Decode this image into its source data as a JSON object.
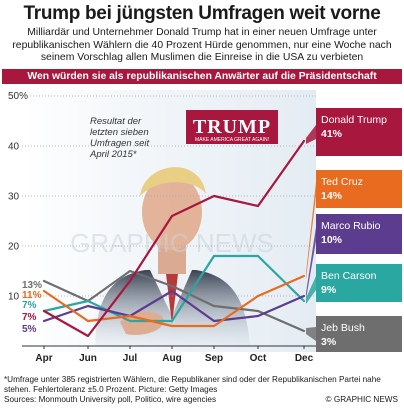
{
  "header": {
    "title": "Trump bei jüngsten Umfragen weit vorne",
    "subtitle": "Milliardär und Unternehmer Donald Trump hat in einer neuen Umfrage unter republikanischen Wählern die 40 Prozent Hürde genommen, nur eine Woche nach seinem Vorschlag allen Muslimen die Einreise in die USA zu verbieten",
    "question": "Wen würden sie als republikanischen Anwärter auf die Präsidentschaft nominieren?"
  },
  "annotation": "Resultat der letzten sieben Umfragen seit April 2015*",
  "photo": {
    "sign_text": "TRUMP",
    "sign_tagline": "MAKE AMERICA GREAT AGAIN!"
  },
  "watermark": "GRAPHIC NEWS",
  "footer": {
    "footnote": "*Umfrage unter 385 registrierten Wählern, die Republikaner sind oder der Republikanischen Partei nahe stehen. Fehlertoleranz ±5.0 Prozent. Picture: Getty Images",
    "sources": "Sources: Monmouth University poll, Politico, wire agencies",
    "copyright": "© GRAPHIC NEWS"
  },
  "chart_data": {
    "type": "line",
    "y_unit_label": "50%",
    "ylim": [
      0,
      50
    ],
    "y_ticks": [
      10,
      20,
      30,
      40
    ],
    "categories": [
      "Apr",
      "Jun",
      "Jul",
      "Aug",
      "Sep",
      "Oct",
      "Dec"
    ],
    "series": [
      {
        "name": "Donald Trump",
        "label": "41%",
        "color": "#a8173e",
        "values": [
          7,
          2,
          13,
          26,
          30,
          28,
          41
        ]
      },
      {
        "name": "Ted Cruz",
        "label": "14%",
        "color": "#e96b1f",
        "values": [
          11,
          5,
          6,
          4,
          4,
          10,
          14
        ]
      },
      {
        "name": "Marco Rubio",
        "label": "10%",
        "color": "#5c3c8e",
        "values": [
          5,
          8,
          6,
          11,
          5,
          6,
          10
        ]
      },
      {
        "name": "Ben Carson",
        "label": "9%",
        "color": "#2aa7a0",
        "values": [
          7,
          9,
          5,
          5,
          18,
          18,
          9
        ]
      },
      {
        "name": "Jeb Bush",
        "label": "3%",
        "color": "#6e6e6e",
        "values": [
          13,
          9,
          15,
          12,
          8,
          7,
          3
        ]
      }
    ],
    "start_labels": [
      {
        "text": "13%",
        "color": "#6e6e6e"
      },
      {
        "text": "11%",
        "color": "#e96b1f"
      },
      {
        "text": "7%",
        "color": "#2aa7a0"
      },
      {
        "text": "7%",
        "color": "#a8173e"
      },
      {
        "text": "5%",
        "color": "#5c3c8e"
      }
    ]
  }
}
